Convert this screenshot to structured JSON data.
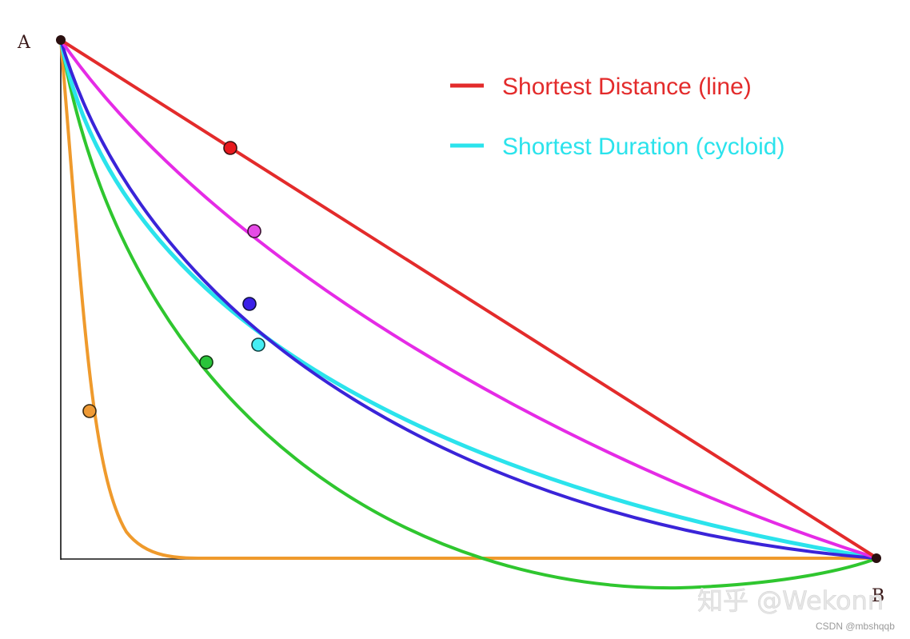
{
  "diagram": {
    "point_a_label": "A",
    "point_b_label": "B",
    "legend": [
      {
        "label": "Shortest Distance (line)",
        "color": "#e32b2b"
      },
      {
        "label": "Shortest Duration (cycloid)",
        "color": "#2be3ec"
      }
    ],
    "curve_colors": {
      "line": "#e32b2b",
      "magenta": "#e52be6",
      "blue": "#3a24d8",
      "cycloid": "#2be3ec",
      "green": "#2fc62f",
      "orange": "#ef9a2c"
    }
  },
  "watermark": {
    "text": "知乎 @Wekonn",
    "csdn": "CSDN @mbshqqb"
  }
}
